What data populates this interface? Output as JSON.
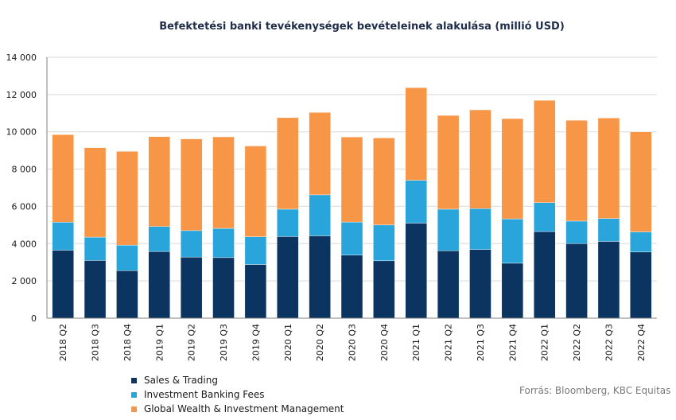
{
  "chart_data": {
    "type": "bar",
    "stacked": true,
    "title": "Befektetési banki tevékenységek bevételeinek  alakulása (millió USD)",
    "categories": [
      "2018 Q2",
      "2018 Q3",
      "2018 Q4",
      "2019 Q1",
      "2019 Q2",
      "2019 Q3",
      "2019 Q4",
      "2020 Q1",
      "2020 Q2",
      "2020 Q3",
      "2020 Q4",
      "2021 Q1",
      "2021 Q2",
      "2021 Q3",
      "2021 Q4",
      "2022 Q1",
      "2022 Q2",
      "2022 Q3",
      "2022 Q4"
    ],
    "series": [
      {
        "name": "Sales & Trading",
        "color": "#0b3560",
        "values": [
          3650,
          3100,
          2550,
          3580,
          3280,
          3250,
          2880,
          4380,
          4420,
          3380,
          3080,
          5100,
          3620,
          3680,
          2950,
          4650,
          4000,
          4120,
          3550
        ]
      },
      {
        "name": "Investment Banking Fees",
        "color": "#2aa5db",
        "values": [
          1500,
          1250,
          1370,
          1340,
          1420,
          1570,
          1490,
          1470,
          2200,
          1780,
          1920,
          2300,
          2230,
          2200,
          2380,
          1550,
          1210,
          1230,
          1080
        ]
      },
      {
        "name": "Global Wealth & Investment Management",
        "color": "#f79646",
        "values": [
          4700,
          4800,
          5030,
          4820,
          4920,
          4910,
          4870,
          4910,
          4420,
          4560,
          4670,
          4970,
          5030,
          5300,
          5380,
          5490,
          5410,
          5390,
          5370
        ]
      }
    ],
    "ylim": [
      0,
      14000
    ],
    "yticks": [
      0,
      2000,
      4000,
      6000,
      8000,
      10000,
      12000,
      14000
    ],
    "ytick_labels": [
      "0",
      "2 000",
      "4 000",
      "6 000",
      "8 000",
      "10 000",
      "12 000",
      "14 000"
    ],
    "grid": true,
    "legend_position": "bottom-left"
  },
  "source": "Forrás: Bloomberg, KBC Equitas"
}
